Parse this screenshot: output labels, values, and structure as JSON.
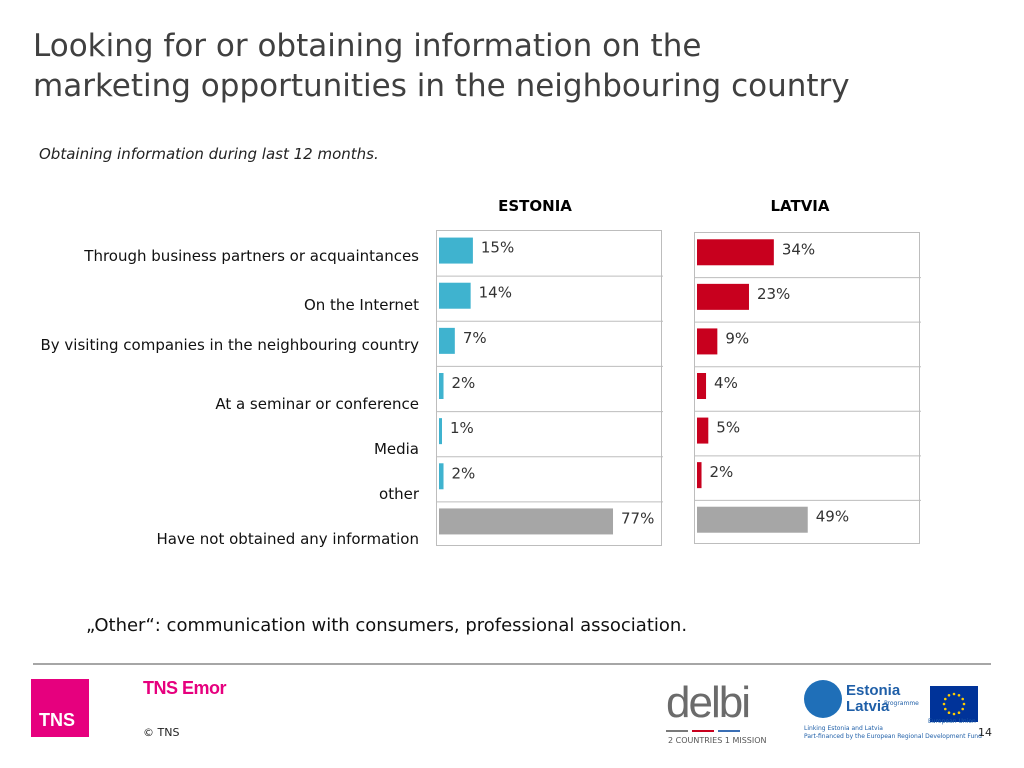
{
  "slide": {
    "title_line1": "Looking for or obtaining information on the",
    "title_line2": "marketing opportunities in the neighbouring country",
    "subtitle": "Obtaining information during last 12 months.",
    "note": "„Other“: communication with consumers, professional association.",
    "page_number": "14"
  },
  "footer": {
    "tns_logo": "TNS",
    "tns_emor": "TNS Emor",
    "copyright": "© TNS",
    "delbi": "delbi",
    "delbi_tagline": "2 COUNTRIES 1 MISSION",
    "estlat_word1": "Estonia",
    "estlat_word2": "Latvia",
    "estlat_programme": "Programme",
    "estlat_line1": "Linking Estonia and Latvia",
    "estlat_line2": "Part-financed by the European Regional Development Fund",
    "eu_label": "European Union"
  },
  "colors": {
    "estonia": "#3fb3cf",
    "latvia": "#c8001e",
    "none": "#a6a6a6",
    "tns_magenta": "#e6007e"
  },
  "chart_data": [
    {
      "type": "bar",
      "orientation": "horizontal",
      "title": "ESTONIA",
      "categories": [
        "Through  business partners or acquaintances",
        "On the Internet",
        "By visiting companies in the neighbouring country",
        "At a  seminar or conference",
        "Media",
        "other",
        "Have not obtained any information"
      ],
      "values": [
        15,
        14,
        7,
        2,
        1,
        2,
        77
      ],
      "labels": [
        "15%",
        "14%",
        "7%",
        "2%",
        "1%",
        "2%",
        "77%"
      ],
      "xlim": [
        0,
        100
      ],
      "grid": false,
      "unit": "%"
    },
    {
      "type": "bar",
      "orientation": "horizontal",
      "title": "LATVIA",
      "categories": [
        "Through  business partners or acquaintances",
        "On the Internet",
        "By visiting companies in the neighbouring country",
        "At a  seminar or conference",
        "Media",
        "other",
        "Have not obtained any information"
      ],
      "values": [
        34,
        23,
        9,
        4,
        5,
        2,
        49
      ],
      "labels": [
        "34%",
        "23%",
        "9%",
        "4%",
        "5%",
        "2%",
        "49%"
      ],
      "xlim": [
        0,
        100
      ],
      "grid": false,
      "unit": "%"
    }
  ]
}
